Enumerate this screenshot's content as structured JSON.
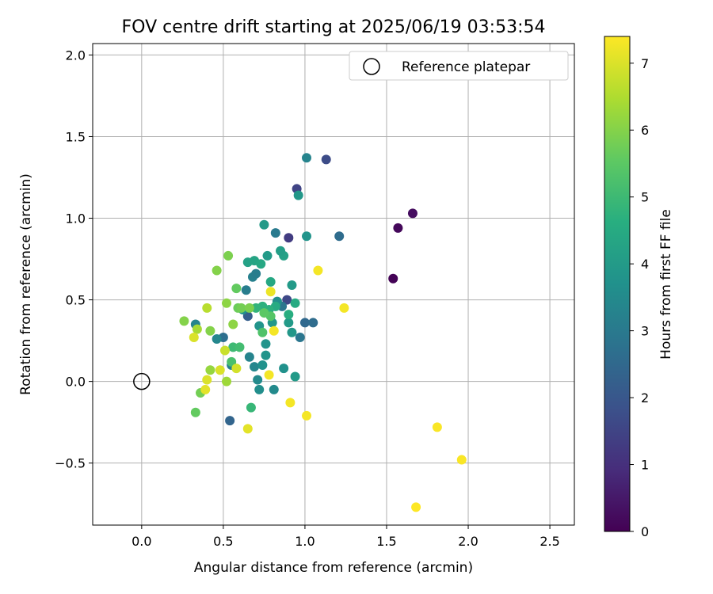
{
  "chart_data": {
    "type": "scatter",
    "title": "FOV centre drift starting at 2025/06/19 03:53:54",
    "xlabel": "Angular distance from reference (arcmin)",
    "ylabel": "Rotation from reference (arcmin)",
    "xlim": [
      -0.3,
      2.65
    ],
    "ylim": [
      -0.88,
      2.07
    ],
    "xticks": [
      "0.0",
      "0.5",
      "1.0",
      "1.5",
      "2.0",
      "2.5"
    ],
    "xtick_values": [
      0,
      0.5,
      1.0,
      1.5,
      2.0,
      2.5
    ],
    "yticks": [
      "−0.5",
      "0.0",
      "0.5",
      "1.0",
      "1.5",
      "2.0"
    ],
    "ytick_values": [
      -0.5,
      0,
      0.5,
      1.0,
      1.5,
      2.0
    ],
    "grid": true,
    "legend": {
      "placement": "top-right",
      "entries": [
        "Reference platepar"
      ]
    },
    "reference_point": {
      "x": 0,
      "y": 0
    },
    "colorbar": {
      "label": "Hours from first FF file",
      "range": [
        0,
        7.4
      ],
      "colormap": "viridis",
      "ticks": [
        "0",
        "1",
        "2",
        "3",
        "4",
        "5",
        "6",
        "7"
      ],
      "tick_values": [
        0,
        1,
        2,
        3,
        4,
        5,
        6,
        7
      ]
    },
    "points": [
      {
        "x": 1.54,
        "y": 0.63,
        "h": 0.05
      },
      {
        "x": 1.57,
        "y": 0.94,
        "h": 0.15
      },
      {
        "x": 1.66,
        "y": 1.03,
        "h": 0.25
      },
      {
        "x": 0.9,
        "y": 0.88,
        "h": 1.3
      },
      {
        "x": 0.95,
        "y": 1.18,
        "h": 1.5
      },
      {
        "x": 1.13,
        "y": 1.36,
        "h": 1.7
      },
      {
        "x": 0.89,
        "y": 0.5,
        "h": 1.6
      },
      {
        "x": 0.65,
        "y": 0.4,
        "h": 2.2
      },
      {
        "x": 0.54,
        "y": -0.24,
        "h": 2.4
      },
      {
        "x": 1.21,
        "y": 0.89,
        "h": 2.6
      },
      {
        "x": 1.0,
        "y": 0.36,
        "h": 2.5
      },
      {
        "x": 1.05,
        "y": 0.36,
        "h": 2.6
      },
      {
        "x": 0.5,
        "y": 0.27,
        "h": 2.7
      },
      {
        "x": 0.97,
        "y": 0.27,
        "h": 2.9
      },
      {
        "x": 0.86,
        "y": 0.46,
        "h": 2.9
      },
      {
        "x": 0.82,
        "y": 0.91,
        "h": 3.0
      },
      {
        "x": 1.01,
        "y": 1.37,
        "h": 3.3
      },
      {
        "x": 0.64,
        "y": 0.56,
        "h": 3.1
      },
      {
        "x": 0.68,
        "y": 0.64,
        "h": 3.2
      },
      {
        "x": 0.7,
        "y": 0.66,
        "h": 3.1
      },
      {
        "x": 0.33,
        "y": 0.35,
        "h": 3.3
      },
      {
        "x": 0.46,
        "y": 0.26,
        "h": 3.4
      },
      {
        "x": 0.55,
        "y": 0.1,
        "h": 3.2
      },
      {
        "x": 0.66,
        "y": 0.15,
        "h": 3.3
      },
      {
        "x": 0.69,
        "y": 0.09,
        "h": 3.4
      },
      {
        "x": 0.71,
        "y": 0.01,
        "h": 3.5
      },
      {
        "x": 0.72,
        "y": -0.05,
        "h": 3.6
      },
      {
        "x": 0.81,
        "y": -0.05,
        "h": 3.5
      },
      {
        "x": 0.87,
        "y": 0.08,
        "h": 3.7
      },
      {
        "x": 0.74,
        "y": 0.1,
        "h": 3.7
      },
      {
        "x": 0.76,
        "y": 0.16,
        "h": 3.8
      },
      {
        "x": 0.76,
        "y": 0.23,
        "h": 3.8
      },
      {
        "x": 0.72,
        "y": 0.34,
        "h": 3.8
      },
      {
        "x": 0.8,
        "y": 0.36,
        "h": 3.9
      },
      {
        "x": 0.83,
        "y": 0.49,
        "h": 3.6
      },
      {
        "x": 0.62,
        "y": 0.44,
        "h": 3.7
      },
      {
        "x": 0.94,
        "y": 0.03,
        "h": 4.0
      },
      {
        "x": 0.9,
        "y": 0.36,
        "h": 4.0
      },
      {
        "x": 0.92,
        "y": 0.3,
        "h": 3.9
      },
      {
        "x": 0.77,
        "y": 0.77,
        "h": 4.0
      },
      {
        "x": 0.87,
        "y": 0.77,
        "h": 4.2
      },
      {
        "x": 0.85,
        "y": 0.8,
        "h": 4.1
      },
      {
        "x": 0.75,
        "y": 0.96,
        "h": 4.0
      },
      {
        "x": 1.01,
        "y": 0.89,
        "h": 3.8
      },
      {
        "x": 0.96,
        "y": 1.14,
        "h": 3.9
      },
      {
        "x": 0.65,
        "y": 0.73,
        "h": 4.2
      },
      {
        "x": 0.69,
        "y": 0.74,
        "h": 4.3
      },
      {
        "x": 0.73,
        "y": 0.72,
        "h": 4.4
      },
      {
        "x": 0.79,
        "y": 0.61,
        "h": 4.4
      },
      {
        "x": 0.92,
        "y": 0.59,
        "h": 4.0
      },
      {
        "x": 0.94,
        "y": 0.48,
        "h": 4.5
      },
      {
        "x": 0.9,
        "y": 0.41,
        "h": 4.6
      },
      {
        "x": 0.82,
        "y": 0.46,
        "h": 4.5
      },
      {
        "x": 0.74,
        "y": 0.46,
        "h": 4.7
      },
      {
        "x": 0.78,
        "y": 0.44,
        "h": 4.7
      },
      {
        "x": 0.7,
        "y": 0.45,
        "h": 4.8
      },
      {
        "x": 0.67,
        "y": -0.16,
        "h": 4.9
      },
      {
        "x": 0.56,
        "y": 0.21,
        "h": 5.0
      },
      {
        "x": 0.6,
        "y": 0.21,
        "h": 5.1
      },
      {
        "x": 0.55,
        "y": 0.12,
        "h": 5.2
      },
      {
        "x": 0.74,
        "y": 0.3,
        "h": 5.3
      },
      {
        "x": 0.79,
        "y": 0.4,
        "h": 5.4
      },
      {
        "x": 0.75,
        "y": 0.42,
        "h": 5.5
      },
      {
        "x": 0.58,
        "y": 0.57,
        "h": 5.6
      },
      {
        "x": 0.59,
        "y": 0.45,
        "h": 5.7
      },
      {
        "x": 0.61,
        "y": 0.45,
        "h": 5.8
      },
      {
        "x": 0.66,
        "y": 0.45,
        "h": 5.9
      },
      {
        "x": 0.33,
        "y": -0.19,
        "h": 5.6
      },
      {
        "x": 0.36,
        "y": -0.07,
        "h": 5.8
      },
      {
        "x": 0.26,
        "y": 0.37,
        "h": 6.0
      },
      {
        "x": 0.42,
        "y": 0.31,
        "h": 6.0
      },
      {
        "x": 0.56,
        "y": 0.35,
        "h": 6.1
      },
      {
        "x": 0.52,
        "y": 0.48,
        "h": 6.1
      },
      {
        "x": 0.46,
        "y": 0.68,
        "h": 6.0
      },
      {
        "x": 0.53,
        "y": 0.77,
        "h": 5.9
      },
      {
        "x": 0.42,
        "y": 0.07,
        "h": 6.2
      },
      {
        "x": 0.52,
        "y": 0.0,
        "h": 6.3
      },
      {
        "x": 0.34,
        "y": 0.32,
        "h": 6.4
      },
      {
        "x": 0.4,
        "y": 0.45,
        "h": 6.6
      },
      {
        "x": 0.51,
        "y": 0.19,
        "h": 6.8
      },
      {
        "x": 0.58,
        "y": 0.08,
        "h": 6.9
      },
      {
        "x": 0.48,
        "y": 0.07,
        "h": 7.0
      },
      {
        "x": 0.32,
        "y": 0.27,
        "h": 7.0
      },
      {
        "x": 0.4,
        "y": 0.01,
        "h": 7.0
      },
      {
        "x": 0.39,
        "y": -0.05,
        "h": 7.1
      },
      {
        "x": 0.65,
        "y": -0.29,
        "h": 7.1
      },
      {
        "x": 0.79,
        "y": 0.55,
        "h": 7.2
      },
      {
        "x": 0.81,
        "y": 0.31,
        "h": 7.3
      },
      {
        "x": 0.78,
        "y": 0.04,
        "h": 7.3
      },
      {
        "x": 0.91,
        "y": -0.13,
        "h": 7.3
      },
      {
        "x": 1.01,
        "y": -0.21,
        "h": 7.3
      },
      {
        "x": 1.08,
        "y": 0.68,
        "h": 7.3
      },
      {
        "x": 1.24,
        "y": 0.45,
        "h": 7.3
      },
      {
        "x": 1.81,
        "y": -0.28,
        "h": 7.35
      },
      {
        "x": 1.96,
        "y": -0.48,
        "h": 7.35
      },
      {
        "x": 1.68,
        "y": -0.77,
        "h": 7.4
      }
    ]
  }
}
